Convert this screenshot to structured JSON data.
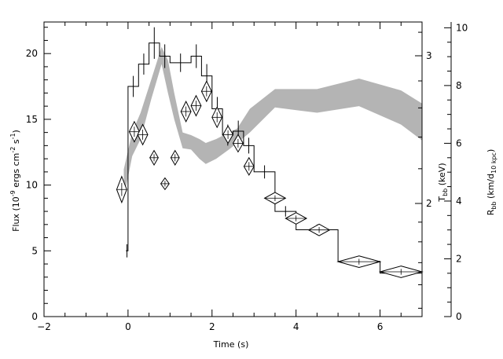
{
  "chart_data": {
    "type": "line",
    "title": "",
    "xlabel": "Time (s)",
    "ylabel_left": {
      "pre": "Flux (10",
      "sup1": "-9",
      "mid": " ergs cm",
      "sup2": "-2",
      "mid2": " s",
      "sup3": "-1",
      "post": ")"
    },
    "ylabel_right1": {
      "main": "T",
      "sub": "bb",
      "post": " (keV)"
    },
    "ylabel_right2": {
      "main": "R",
      "sub": "bb",
      "mid": " (km/d",
      "sub2": "10 kpc",
      "post": ")"
    },
    "xlim": [
      -2,
      7
    ],
    "ylim_flux": [
      0,
      22.4
    ],
    "ylim_R": [
      0,
      10.2
    ],
    "T_scale": "log",
    "T_ticks": [
      {
        "value": 2,
        "label": "2"
      },
      {
        "value": 3,
        "label": "3"
      }
    ],
    "x_ticks": [
      -2,
      0,
      2,
      4,
      6
    ],
    "flux_ticks": [
      0,
      5,
      10,
      15,
      20
    ],
    "R_ticks": [
      0,
      2,
      4,
      6,
      8,
      10
    ],
    "series": [
      {
        "kind": "flux_histogram",
        "points": [
          {
            "x0": -0.05,
            "x1": 0.0,
            "y": 5.0,
            "err": 0.5
          },
          {
            "x0": 0.0,
            "x1": 0.25,
            "y": 17.5,
            "err": 0.8
          },
          {
            "x0": 0.25,
            "x1": 0.5,
            "y": 19.2,
            "err": 0.8
          },
          {
            "x0": 0.5,
            "x1": 0.75,
            "y": 20.8,
            "err": 1.2
          },
          {
            "x0": 0.75,
            "x1": 1.0,
            "y": 19.8,
            "err": 0.9
          },
          {
            "x0": 1.0,
            "x1": 1.5,
            "y": 19.3,
            "err": 0.7
          },
          {
            "x0": 1.5,
            "x1": 1.75,
            "y": 19.8,
            "err": 0.9
          },
          {
            "x0": 1.75,
            "x1": 2.0,
            "y": 18.3,
            "err": 0.9
          },
          {
            "x0": 2.0,
            "x1": 2.25,
            "y": 15.8,
            "err": 0.9
          },
          {
            "x0": 2.25,
            "x1": 2.5,
            "y": 13.8,
            "err": 0.8
          },
          {
            "x0": 2.5,
            "x1": 2.75,
            "y": 14.1,
            "err": 0.8
          },
          {
            "x0": 2.75,
            "x1": 3.0,
            "y": 13.0,
            "err": 0.6
          },
          {
            "x0": 3.0,
            "x1": 3.5,
            "y": 11.0,
            "err": 0.5
          },
          {
            "x0": 3.5,
            "x1": 4.0,
            "y": 8.0,
            "err": 0.4
          },
          {
            "x0": 4.0,
            "x1": 5.0,
            "y": 6.6,
            "err": 0.4
          },
          {
            "x0": 5.0,
            "x1": 6.0,
            "y": 4.2,
            "err": 0.3
          },
          {
            "x0": 6.0,
            "x1": 7.0,
            "y": 3.3,
            "err": 0.3
          }
        ]
      },
      {
        "kind": "T_band",
        "x": [
          -0.1,
          0.1,
          0.3,
          0.55,
          0.8,
          0.95,
          1.1,
          1.3,
          1.5,
          1.7,
          1.85,
          2.1,
          2.4,
          2.6,
          2.9,
          3.5,
          4.5,
          5.5,
          6.5,
          7.0
        ],
        "upper": [
          11.2,
          14.0,
          15.5,
          18.0,
          20.5,
          19.5,
          17.0,
          14.0,
          13.8,
          13.5,
          13.2,
          13.5,
          14.0,
          14.3,
          15.8,
          17.3,
          17.3,
          18.1,
          17.2,
          16.2
        ],
        "lower": [
          9.0,
          12.2,
          13.5,
          16.5,
          19.2,
          17.0,
          15.0,
          12.8,
          12.7,
          12.0,
          11.6,
          12.0,
          12.7,
          13.2,
          14.0,
          15.9,
          15.5,
          16.0,
          14.6,
          13.4
        ]
      },
      {
        "kind": "R_diamonds",
        "points": [
          {
            "x": -0.15,
            "y": 4.4,
            "hw": 0.12,
            "hh": 0.45
          },
          {
            "x": 0.15,
            "y": 6.4,
            "hw": 0.12,
            "hh": 0.35
          },
          {
            "x": 0.35,
            "y": 6.3,
            "hw": 0.12,
            "hh": 0.35
          },
          {
            "x": 0.62,
            "y": 5.5,
            "hw": 0.1,
            "hh": 0.25
          },
          {
            "x": 0.88,
            "y": 4.6,
            "hw": 0.1,
            "hh": 0.2
          },
          {
            "x": 1.12,
            "y": 5.5,
            "hw": 0.1,
            "hh": 0.25
          },
          {
            "x": 1.38,
            "y": 7.1,
            "hw": 0.12,
            "hh": 0.35
          },
          {
            "x": 1.62,
            "y": 7.3,
            "hw": 0.12,
            "hh": 0.35
          },
          {
            "x": 1.87,
            "y": 7.8,
            "hw": 0.12,
            "hh": 0.35
          },
          {
            "x": 2.12,
            "y": 6.9,
            "hw": 0.12,
            "hh": 0.35
          },
          {
            "x": 2.38,
            "y": 6.3,
            "hw": 0.12,
            "hh": 0.3
          },
          {
            "x": 2.62,
            "y": 6.0,
            "hw": 0.12,
            "hh": 0.3
          },
          {
            "x": 2.88,
            "y": 5.2,
            "hw": 0.12,
            "hh": 0.3
          },
          {
            "x": 3.5,
            "y": 4.1,
            "hw": 0.25,
            "hh": 0.2
          },
          {
            "x": 4.0,
            "y": 3.4,
            "hw": 0.25,
            "hh": 0.2
          },
          {
            "x": 4.55,
            "y": 3.0,
            "hw": 0.25,
            "hh": 0.2
          },
          {
            "x": 5.5,
            "y": 1.9,
            "hw": 0.5,
            "hh": 0.2
          },
          {
            "x": 6.5,
            "y": 1.55,
            "hw": 0.5,
            "hh": 0.2
          }
        ]
      }
    ]
  }
}
